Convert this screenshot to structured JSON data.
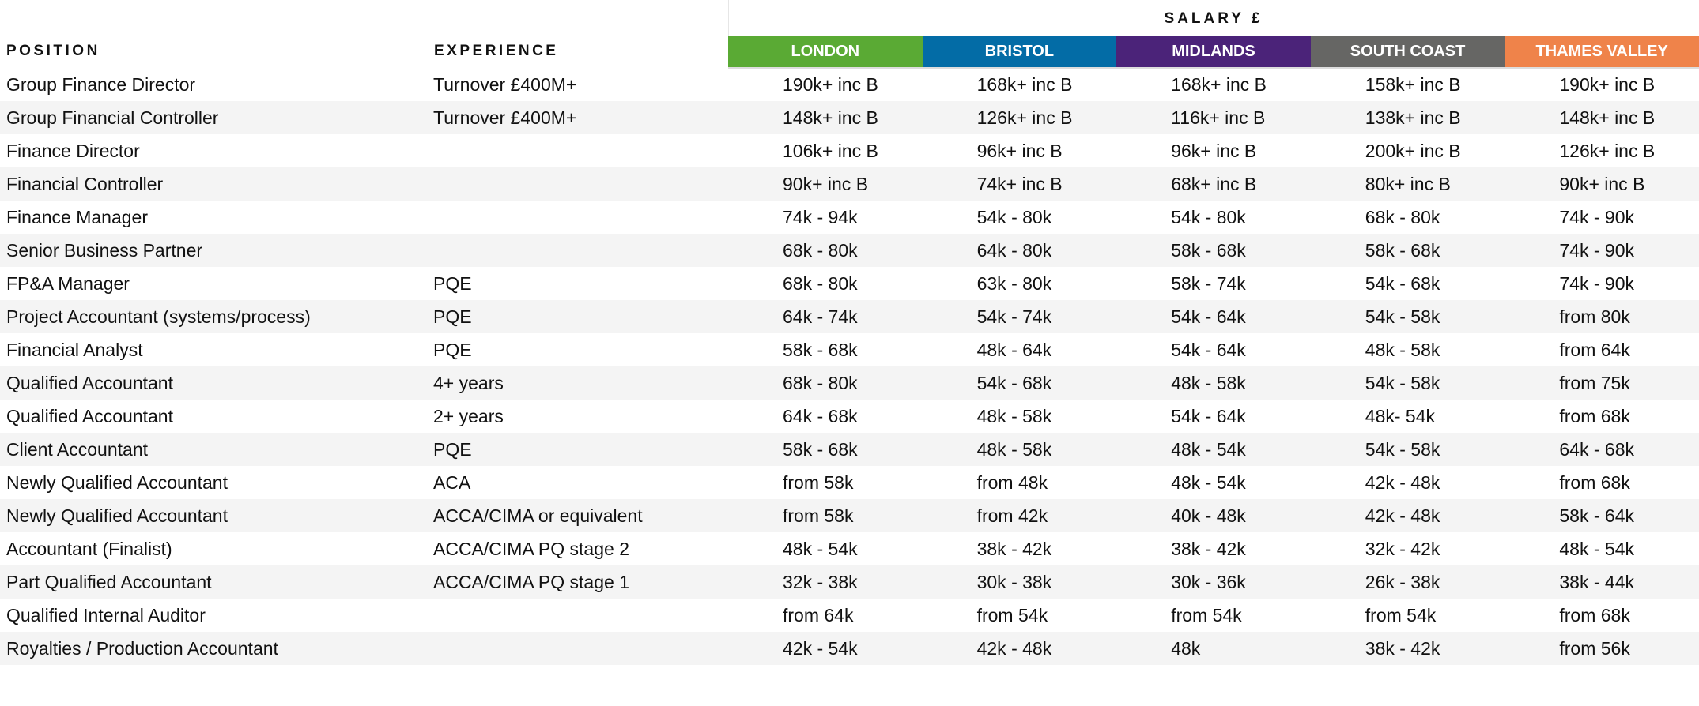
{
  "header": {
    "position_label": "POSITION",
    "experience_label": "EXPERIENCE",
    "salary_label": "SALARY £"
  },
  "regions": [
    {
      "label": "LONDON",
      "color": "#5aaa34"
    },
    {
      "label": "BRISTOL",
      "color": "#036ca6"
    },
    {
      "label": "MIDLANDS",
      "color": "#4b2379"
    },
    {
      "label": "SOUTH COAST",
      "color": "#666664"
    },
    {
      "label": "THAMES VALLEY",
      "color": "#ef834a"
    }
  ],
  "rows": [
    {
      "position": "Group Finance Director",
      "experience": "Turnover £400M+",
      "salaries": [
        "190k+ inc B",
        "168k+ inc B",
        "168k+ inc B",
        "158k+ inc B",
        "190k+ inc B"
      ]
    },
    {
      "position": "Group Financial Controller",
      "experience": "Turnover £400M+",
      "salaries": [
        "148k+ inc B",
        "126k+ inc B",
        "116k+ inc B",
        "138k+ inc B",
        "148k+ inc B"
      ]
    },
    {
      "position": "Finance Director",
      "experience": "",
      "salaries": [
        "106k+ inc B",
        "96k+ inc B",
        "96k+ inc B",
        "200k+ inc B",
        "126k+ inc B"
      ]
    },
    {
      "position": "Financial Controller",
      "experience": "",
      "salaries": [
        "90k+ inc B",
        "74k+ inc B",
        "68k+ inc B",
        "80k+ inc B",
        "90k+ inc B"
      ]
    },
    {
      "position": "Finance Manager",
      "experience": "",
      "salaries": [
        "74k - 94k",
        "54k - 80k",
        "54k - 80k",
        "68k - 80k",
        "74k - 90k"
      ]
    },
    {
      "position": "Senior Business Partner",
      "experience": "",
      "salaries": [
        "68k - 80k",
        "64k - 80k",
        "58k - 68k",
        "58k - 68k",
        "74k - 90k"
      ]
    },
    {
      "position": "FP&A Manager",
      "experience": "PQE",
      "salaries": [
        "68k - 80k",
        "63k - 80k",
        "58k - 74k",
        "54k - 68k",
        "74k - 90k"
      ]
    },
    {
      "position": "Project Accountant (systems/process)",
      "experience": "PQE",
      "salaries": [
        "64k - 74k",
        "54k - 74k",
        "54k - 64k",
        "54k - 58k",
        "from 80k"
      ]
    },
    {
      "position": "Financial Analyst",
      "experience": "PQE",
      "salaries": [
        "58k - 68k",
        "48k - 64k",
        "54k - 64k",
        "48k - 58k",
        "from 64k"
      ]
    },
    {
      "position": "Qualified Accountant",
      "experience": "4+ years",
      "salaries": [
        "68k - 80k",
        "54k - 68k",
        "48k - 58k",
        "54k - 58k",
        "from 75k"
      ]
    },
    {
      "position": "Qualified Accountant",
      "experience": "2+ years",
      "salaries": [
        "64k - 68k",
        "48k - 58k",
        "54k - 64k",
        "48k- 54k",
        "from 68k"
      ]
    },
    {
      "position": "Client Accountant",
      "experience": "PQE",
      "salaries": [
        "58k - 68k",
        "48k - 58k",
        "48k - 54k",
        "54k - 58k",
        "64k - 68k"
      ]
    },
    {
      "position": "Newly Qualified Accountant",
      "experience": "ACA",
      "salaries": [
        "from 58k",
        "from 48k",
        "48k - 54k",
        "42k - 48k",
        "from 68k"
      ]
    },
    {
      "position": "Newly Qualified Accountant",
      "experience": "ACCA/CIMA or equivalent",
      "salaries": [
        "from 58k",
        "from 42k",
        "40k - 48k",
        "42k - 48k",
        "58k - 64k"
      ]
    },
    {
      "position": "Accountant (Finalist)",
      "experience": "ACCA/CIMA PQ stage 2",
      "salaries": [
        "48k - 54k",
        "38k - 42k",
        "38k - 42k",
        "32k - 42k",
        "48k - 54k"
      ]
    },
    {
      "position": "Part Qualified Accountant",
      "experience": "ACCA/CIMA PQ stage 1",
      "salaries": [
        "32k - 38k",
        "30k - 38k",
        "30k - 36k",
        "26k - 38k",
        "38k - 44k"
      ]
    },
    {
      "position": "Qualified Internal Auditor",
      "experience": "",
      "salaries": [
        "from 64k",
        "from 54k",
        "from 54k",
        "from 54k",
        "from 68k"
      ]
    },
    {
      "position": "Royalties / Production Accountant",
      "experience": "",
      "salaries": [
        "42k - 54k",
        "42k - 48k",
        "48k",
        "38k - 42k",
        "from 56k"
      ]
    }
  ]
}
